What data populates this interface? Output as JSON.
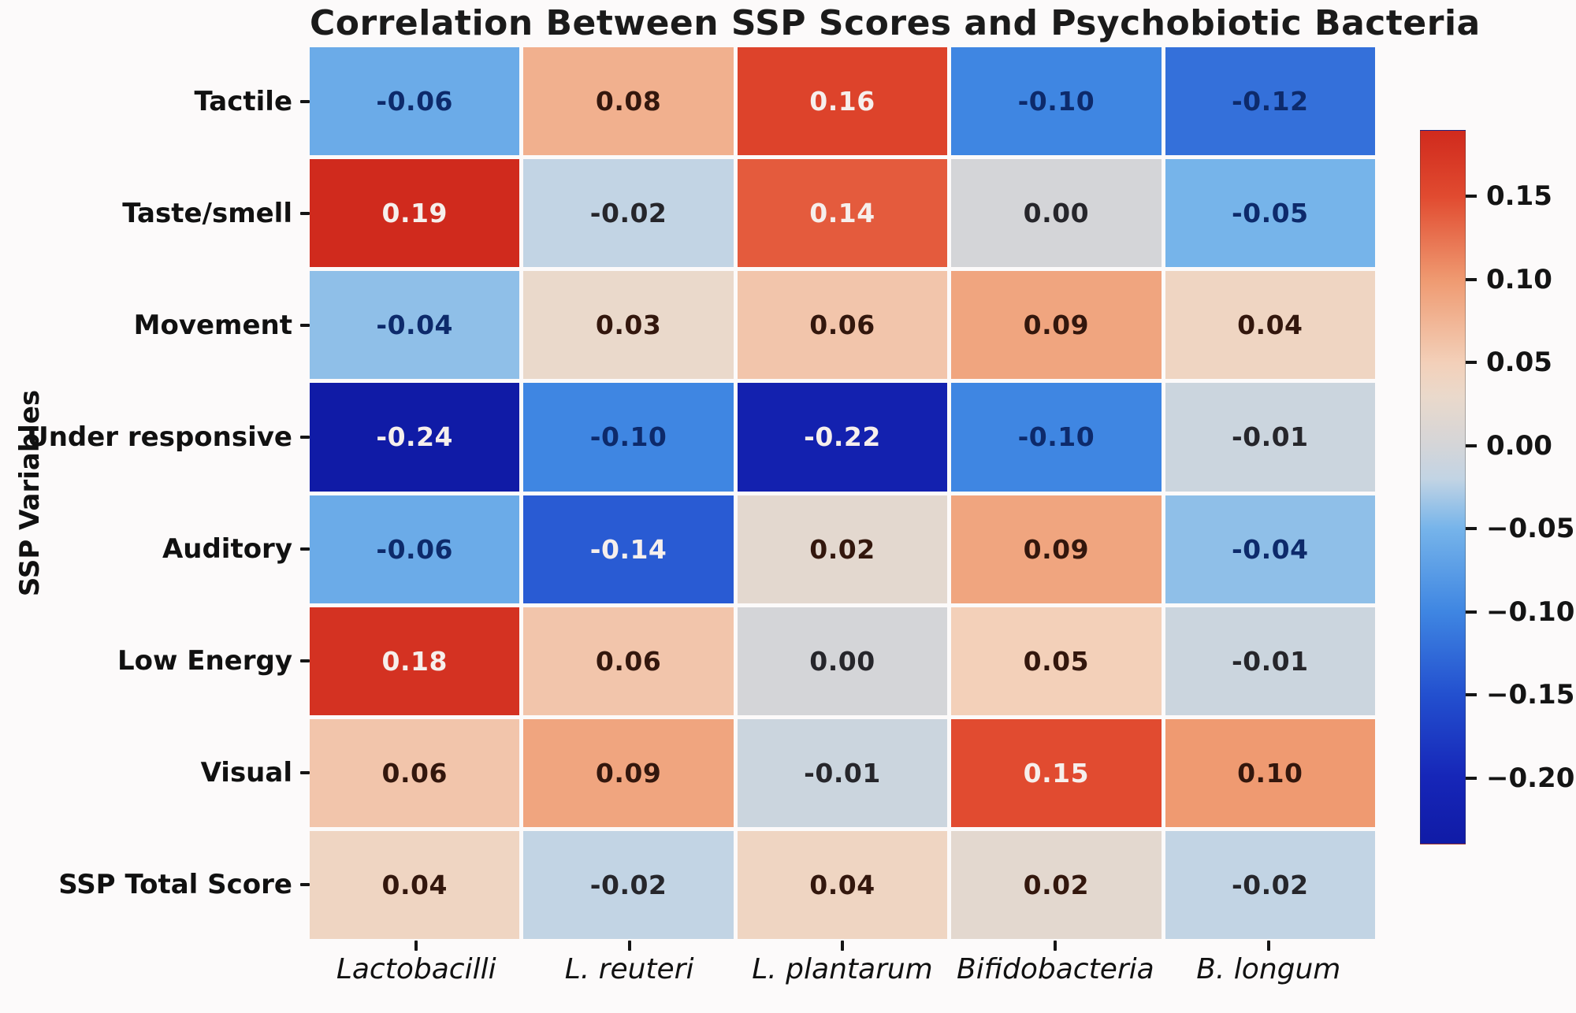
{
  "figure": {
    "background": "#fcfafa",
    "tick_color": "#151515",
    "text_color": "#171717"
  },
  "chart_data": {
    "type": "heatmap",
    "title": "Correlation Between SSP Scores and Psychobiotic Bacteria",
    "xlabel": "",
    "ylabel": "SSP Variables",
    "rows": [
      "Tactile",
      "Taste/smell",
      "Movement",
      "Under responsive",
      "Auditory",
      "Low Energy",
      "Visual",
      "SSP Total Score"
    ],
    "columns": [
      "Lactobacilli",
      "L. reuteri",
      "L. plantarum",
      "Bifidobacteria",
      "B. longum"
    ],
    "values": [
      [
        -0.06,
        0.08,
        0.16,
        -0.1,
        -0.12
      ],
      [
        0.19,
        -0.02,
        0.14,
        0.0,
        -0.05
      ],
      [
        -0.04,
        0.03,
        0.06,
        0.09,
        0.04
      ],
      [
        -0.24,
        -0.1,
        -0.22,
        -0.1,
        -0.01
      ],
      [
        -0.06,
        -0.14,
        0.02,
        0.09,
        -0.04
      ],
      [
        0.18,
        0.06,
        0.0,
        0.05,
        -0.01
      ],
      [
        0.06,
        0.09,
        -0.01,
        0.15,
        0.1
      ],
      [
        0.04,
        -0.02,
        0.04,
        0.02,
        -0.02
      ]
    ],
    "vmin": -0.24,
    "vmax": 0.19,
    "grid": false,
    "legend_position": "right-colorbar",
    "colorbar_ticks": [
      {
        "label": "0.15",
        "value": 0.15
      },
      {
        "label": "0.10",
        "value": 0.1
      },
      {
        "label": "0.05",
        "value": 0.05
      },
      {
        "label": "0.00",
        "value": 0.0
      },
      {
        "label": "−0.05",
        "value": -0.05
      },
      {
        "label": "−0.10",
        "value": -0.1
      },
      {
        "label": "−0.15",
        "value": -0.15
      },
      {
        "label": "−0.20",
        "value": -0.2
      }
    ],
    "colormap": {
      "name": "blue-gray-red-diverging",
      "stops": [
        {
          "value": -0.24,
          "color": "#101ba6"
        },
        {
          "value": -0.2,
          "color": "#1626b8"
        },
        {
          "value": -0.15,
          "color": "#2350cf"
        },
        {
          "value": -0.1,
          "color": "#3f86e2"
        },
        {
          "value": -0.05,
          "color": "#76b4ea"
        },
        {
          "value": -0.02,
          "color": "#c2d4e4"
        },
        {
          "value": 0.0,
          "color": "#d4d5d8"
        },
        {
          "value": 0.03,
          "color": "#ead9cb"
        },
        {
          "value": 0.05,
          "color": "#f3d0b9"
        },
        {
          "value": 0.1,
          "color": "#ef9a71"
        },
        {
          "value": 0.15,
          "color": "#e14b30"
        },
        {
          "value": 0.19,
          "color": "#d02a1d"
        }
      ]
    },
    "annotation_colors": {
      "light": "#f6efec",
      "dark_negative": "#0d2a6b",
      "dark_neutral": "#26262b",
      "dark_positive": "#33170d",
      "white_text_abs_threshold": 0.14
    }
  }
}
